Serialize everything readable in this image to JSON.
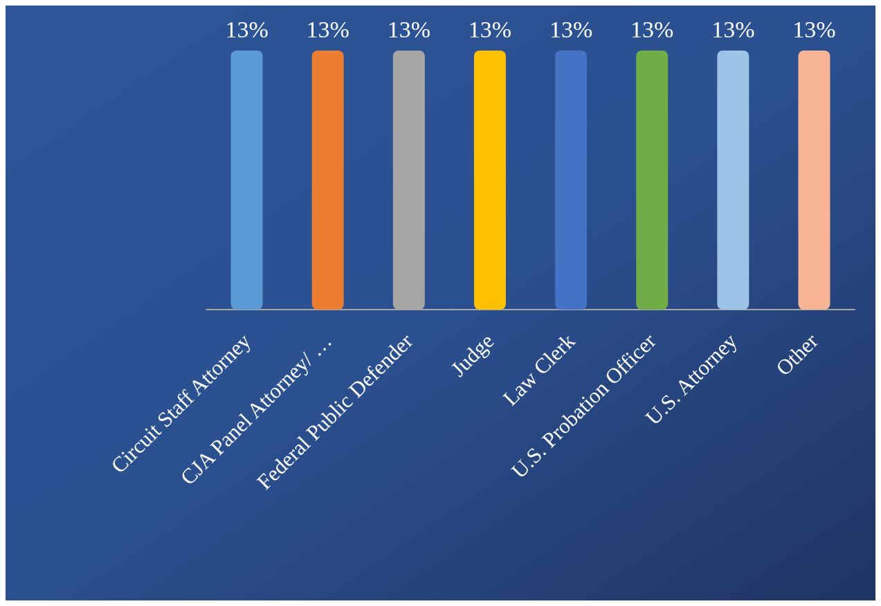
{
  "chart_data": {
    "type": "bar",
    "categories": [
      "Circuit Staff Attorney",
      "CJA Panel Attorney/ …",
      "Federal Public Defender",
      "Judge",
      "Law Clerk",
      "U.S. Probation Officer",
      "U.S. Attorney",
      "Other"
    ],
    "values": [
      13,
      13,
      13,
      13,
      13,
      13,
      13,
      13
    ],
    "value_labels": [
      "13%",
      "13%",
      "13%",
      "13%",
      "13%",
      "13%",
      "13%",
      "13%"
    ],
    "colors": [
      "#5b9bd5",
      "#ed7d31",
      "#a5a5a5",
      "#ffc000",
      "#4472c4",
      "#70ad47",
      "#9dc3e6",
      "#f8b596"
    ]
  }
}
